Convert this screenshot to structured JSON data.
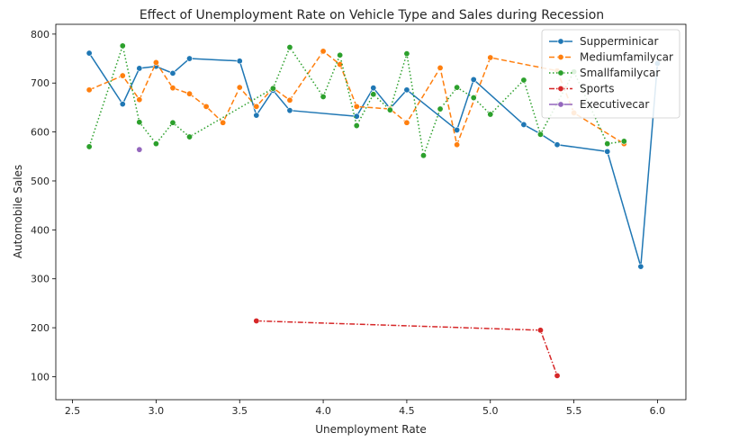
{
  "chart_data": {
    "type": "line",
    "title": "Effect of Unemployment Rate on Vehicle Type and Sales during Recession",
    "xlabel": "Unemployment Rate",
    "ylabel": "Automobile Sales",
    "xlim": [
      2.4,
      6.17
    ],
    "ylim": [
      53,
      820
    ],
    "x_ticks": [
      2.5,
      3.0,
      3.5,
      4.0,
      4.5,
      5.0,
      5.5,
      6.0
    ],
    "x_tick_labels": [
      "2.5",
      "3.0",
      "3.5",
      "4.0",
      "4.5",
      "5.0",
      "5.5",
      "6.0"
    ],
    "y_ticks": [
      100,
      200,
      300,
      400,
      500,
      600,
      700,
      800
    ],
    "y_tick_labels": [
      "100",
      "200",
      "300",
      "400",
      "500",
      "600",
      "700",
      "800"
    ],
    "grid": false,
    "legend_position": "top-right",
    "series": [
      {
        "name": "Supperminicar",
        "color": "#1f77b4",
        "dash": "solid",
        "points": [
          {
            "x": 2.6,
            "y": 761
          },
          {
            "x": 2.8,
            "y": 657
          },
          {
            "x": 2.9,
            "y": 730
          },
          {
            "x": 3.0,
            "y": 734
          },
          {
            "x": 3.1,
            "y": 720
          },
          {
            "x": 3.2,
            "y": 750
          },
          {
            "x": 3.5,
            "y": 745
          },
          {
            "x": 3.6,
            "y": 634
          },
          {
            "x": 3.7,
            "y": 685
          },
          {
            "x": 3.8,
            "y": 644
          },
          {
            "x": 4.2,
            "y": 632
          },
          {
            "x": 4.3,
            "y": 690
          },
          {
            "x": 4.4,
            "y": 648
          },
          {
            "x": 4.5,
            "y": 686
          },
          {
            "x": 4.8,
            "y": 604
          },
          {
            "x": 4.9,
            "y": 707
          },
          {
            "x": 5.2,
            "y": 615
          },
          {
            "x": 5.3,
            "y": 596
          },
          {
            "x": 5.4,
            "y": 574
          },
          {
            "x": 5.7,
            "y": 560
          },
          {
            "x": 5.9,
            "y": 325
          },
          {
            "x": 6.0,
            "y": 740
          }
        ]
      },
      {
        "name": "Mediumfamilycar",
        "color": "#ff7f0e",
        "dash": "dashed",
        "points": [
          {
            "x": 2.6,
            "y": 686
          },
          {
            "x": 2.8,
            "y": 715
          },
          {
            "x": 2.9,
            "y": 666
          },
          {
            "x": 3.0,
            "y": 742
          },
          {
            "x": 3.1,
            "y": 690
          },
          {
            "x": 3.2,
            "y": 678
          },
          {
            "x": 3.3,
            "y": 652
          },
          {
            "x": 3.4,
            "y": 619
          },
          {
            "x": 3.5,
            "y": 691
          },
          {
            "x": 3.6,
            "y": 652
          },
          {
            "x": 3.7,
            "y": 690
          },
          {
            "x": 3.8,
            "y": 665
          },
          {
            "x": 4.0,
            "y": 765
          },
          {
            "x": 4.1,
            "y": 738
          },
          {
            "x": 4.2,
            "y": 652
          },
          {
            "x": 4.4,
            "y": 647
          },
          {
            "x": 4.5,
            "y": 619
          },
          {
            "x": 4.7,
            "y": 731
          },
          {
            "x": 4.8,
            "y": 574
          },
          {
            "x": 5.0,
            "y": 752
          },
          {
            "x": 5.4,
            "y": 725
          },
          {
            "x": 5.5,
            "y": 639
          },
          {
            "x": 5.8,
            "y": 576
          }
        ]
      },
      {
        "name": "Smallfamilycar",
        "color": "#2ca02c",
        "dash": "dotted",
        "points": [
          {
            "x": 2.6,
            "y": 570
          },
          {
            "x": 2.8,
            "y": 776
          },
          {
            "x": 2.9,
            "y": 620
          },
          {
            "x": 3.0,
            "y": 576
          },
          {
            "x": 3.1,
            "y": 619
          },
          {
            "x": 3.2,
            "y": 590
          },
          {
            "x": 3.7,
            "y": 689
          },
          {
            "x": 3.8,
            "y": 773
          },
          {
            "x": 4.0,
            "y": 672
          },
          {
            "x": 4.1,
            "y": 757
          },
          {
            "x": 4.2,
            "y": 613
          },
          {
            "x": 4.3,
            "y": 677
          },
          {
            "x": 4.4,
            "y": 645
          },
          {
            "x": 4.5,
            "y": 760
          },
          {
            "x": 4.6,
            "y": 552
          },
          {
            "x": 4.7,
            "y": 647
          },
          {
            "x": 4.8,
            "y": 691
          },
          {
            "x": 4.9,
            "y": 670
          },
          {
            "x": 5.0,
            "y": 636
          },
          {
            "x": 5.2,
            "y": 706
          },
          {
            "x": 5.3,
            "y": 595
          },
          {
            "x": 5.5,
            "y": 723
          },
          {
            "x": 5.7,
            "y": 576
          },
          {
            "x": 5.8,
            "y": 581
          }
        ]
      },
      {
        "name": "Sports",
        "color": "#d62728",
        "dash": "dashdot",
        "points": [
          {
            "x": 3.6,
            "y": 214
          },
          {
            "x": 5.3,
            "y": 195
          },
          {
            "x": 5.4,
            "y": 102
          }
        ]
      },
      {
        "name": "Executivecar",
        "color": "#9467bd",
        "dash": "solid",
        "points": [
          {
            "x": 2.9,
            "y": 564
          }
        ]
      }
    ]
  }
}
